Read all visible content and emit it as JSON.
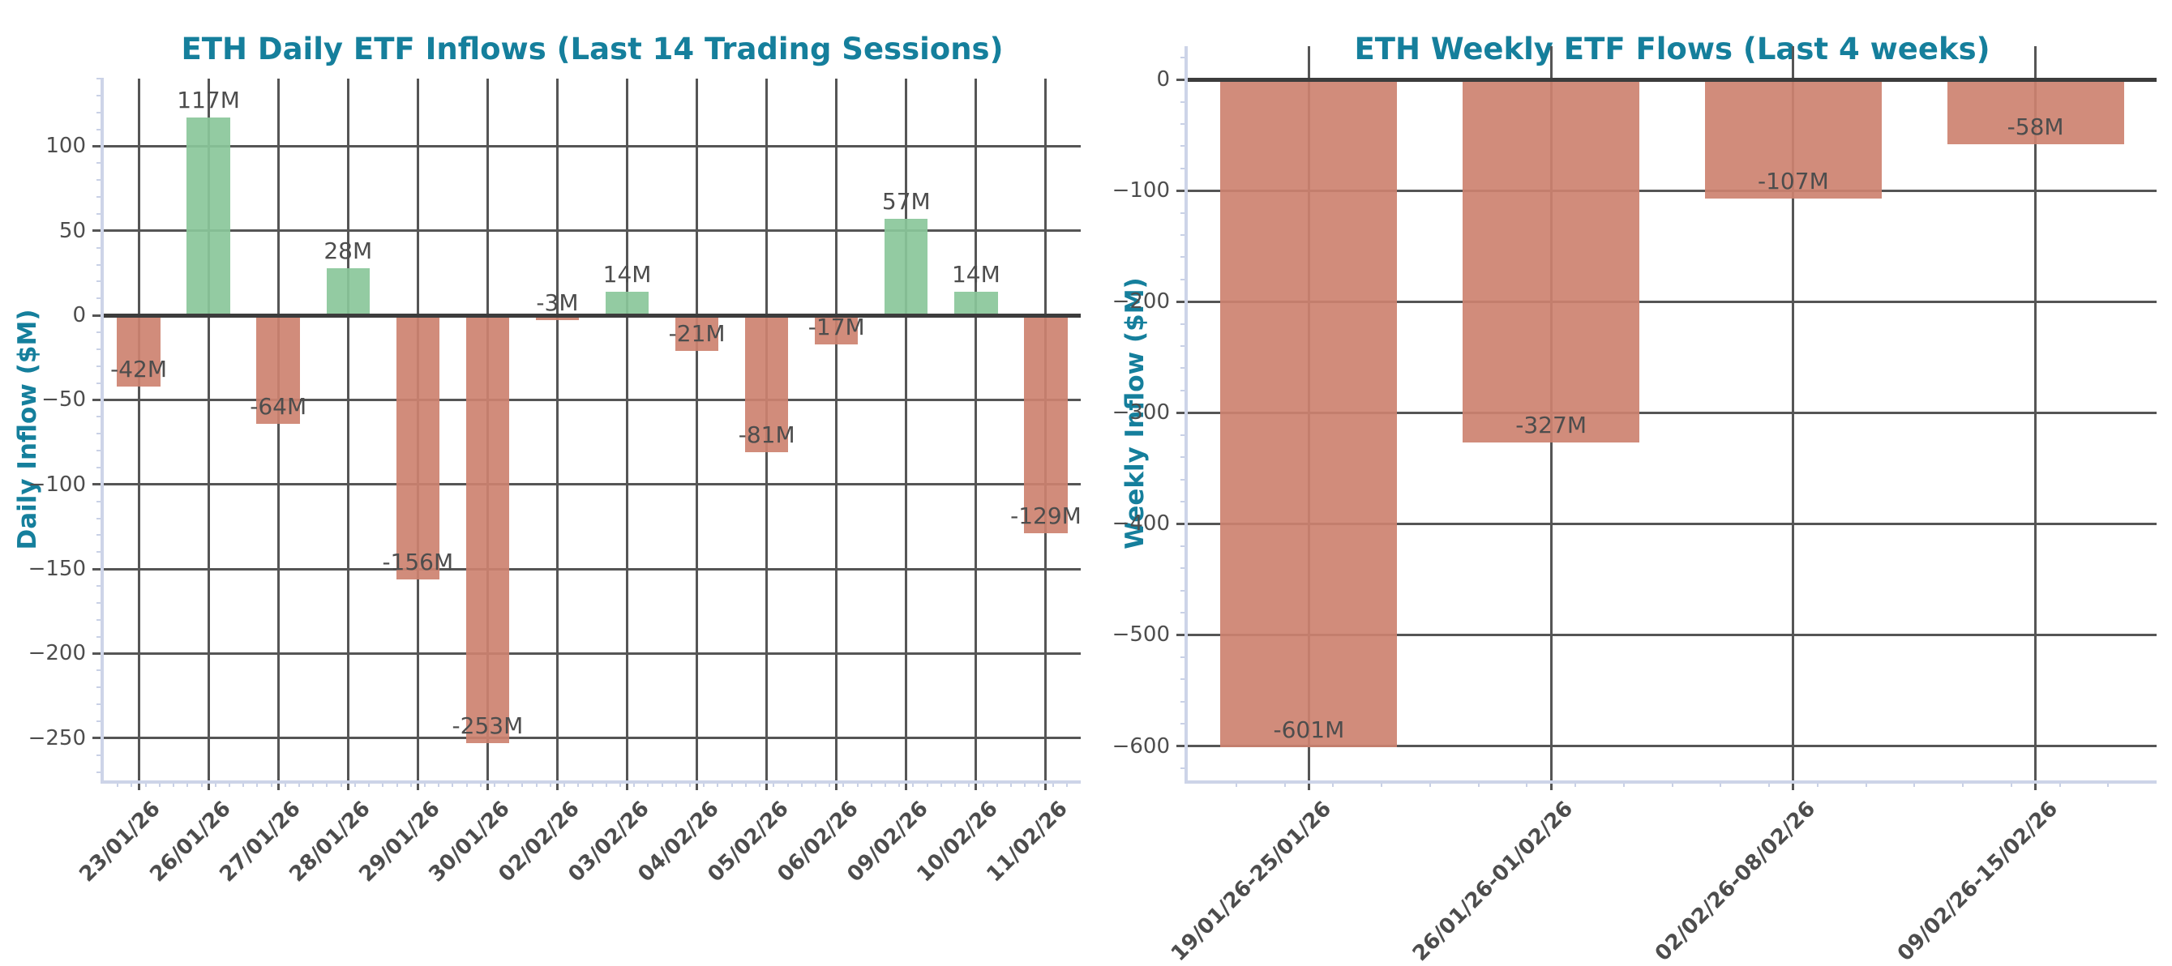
{
  "page": {
    "background": "#ffffff"
  },
  "styles": {
    "title_color": "#157f9c",
    "axis_label_color": "#157f9c",
    "tick_label_color": "#4d4d4d",
    "value_label_color": "#4d4d4d",
    "grid_color": "#555555",
    "zero_line_color": "#3c3c3c",
    "spine_color": "#cdd4e8",
    "minor_tick_color": "#c9d1e6",
    "positive_bar_color": "#8ac79a",
    "negative_bar_color": "#cd8270"
  },
  "chart_data": [
    {
      "type": "bar",
      "title": "ETH Daily ETF Inflows (Last 14 Trading Sessions)",
      "xlabel": "",
      "ylabel": "Daily Inflow ($M)",
      "categories": [
        "23/01/26",
        "26/01/26",
        "27/01/26",
        "28/01/26",
        "29/01/26",
        "30/01/26",
        "02/02/26",
        "03/02/26",
        "04/02/26",
        "05/02/26",
        "06/02/26",
        "09/02/26",
        "10/02/26",
        "11/02/26"
      ],
      "values": [
        -42,
        117,
        -64,
        28,
        -156,
        -253,
        -3,
        14,
        -21,
        -81,
        -17,
        57,
        14,
        -129
      ],
      "bar_labels": [
        "-42M",
        "117M",
        "-64M",
        "28M",
        "-156M",
        "-253M",
        "-3M",
        "14M",
        "-21M",
        "-81M",
        "-17M",
        "57M",
        "14M",
        "-129M"
      ],
      "yticks": [
        100,
        50,
        0,
        -50,
        -100,
        -150,
        -200,
        -250
      ],
      "ylim": [
        -275,
        140
      ],
      "grid": true,
      "legend": "none",
      "color_rule": "green if positive, salmon if negative"
    },
    {
      "type": "bar",
      "title": "ETH Weekly ETF Flows (Last 4 weeks)",
      "xlabel": "",
      "ylabel": "Weekly Inflow ($M)",
      "categories": [
        "19/01/26-25/01/26",
        "26/01/26-01/02/26",
        "02/02/26-08/02/26",
        "09/02/26-15/02/26"
      ],
      "values": [
        -601,
        -327,
        -107,
        -58
      ],
      "bar_labels": [
        "-601M",
        "-327M",
        "-107M",
        "-58M"
      ],
      "yticks": [
        0,
        -100,
        -200,
        -300,
        -400,
        -500,
        -600
      ],
      "ylim": [
        -631,
        30
      ],
      "grid": true,
      "legend": "none",
      "color_rule": "green if positive, salmon if negative"
    }
  ]
}
